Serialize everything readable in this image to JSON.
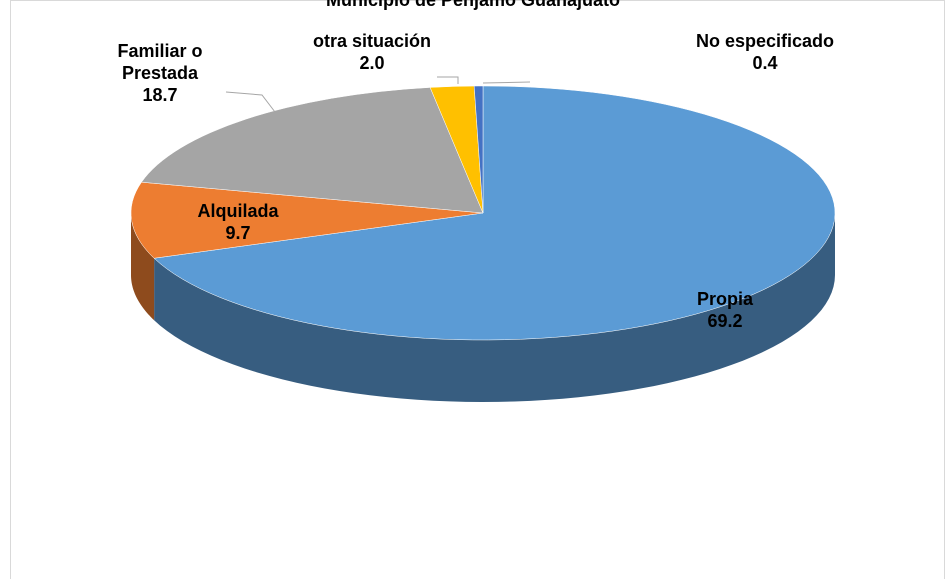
{
  "chart_data": {
    "type": "pie",
    "title": "Municipio de Pénjamo Guanajuato",
    "categories": [
      "Propia",
      "Alquilada",
      "Familiar o Prestada",
      "otra situación",
      "No especificado"
    ],
    "values": [
      69.2,
      9.7,
      18.7,
      2.0,
      0.4
    ],
    "value_labels": [
      "69.2",
      "9.7",
      "18.7",
      "2.0",
      "0.4"
    ],
    "colors": [
      "#5b9bd5",
      "#ed7d31",
      "#a5a5a5",
      "#ffc000",
      "#4472c4"
    ]
  }
}
